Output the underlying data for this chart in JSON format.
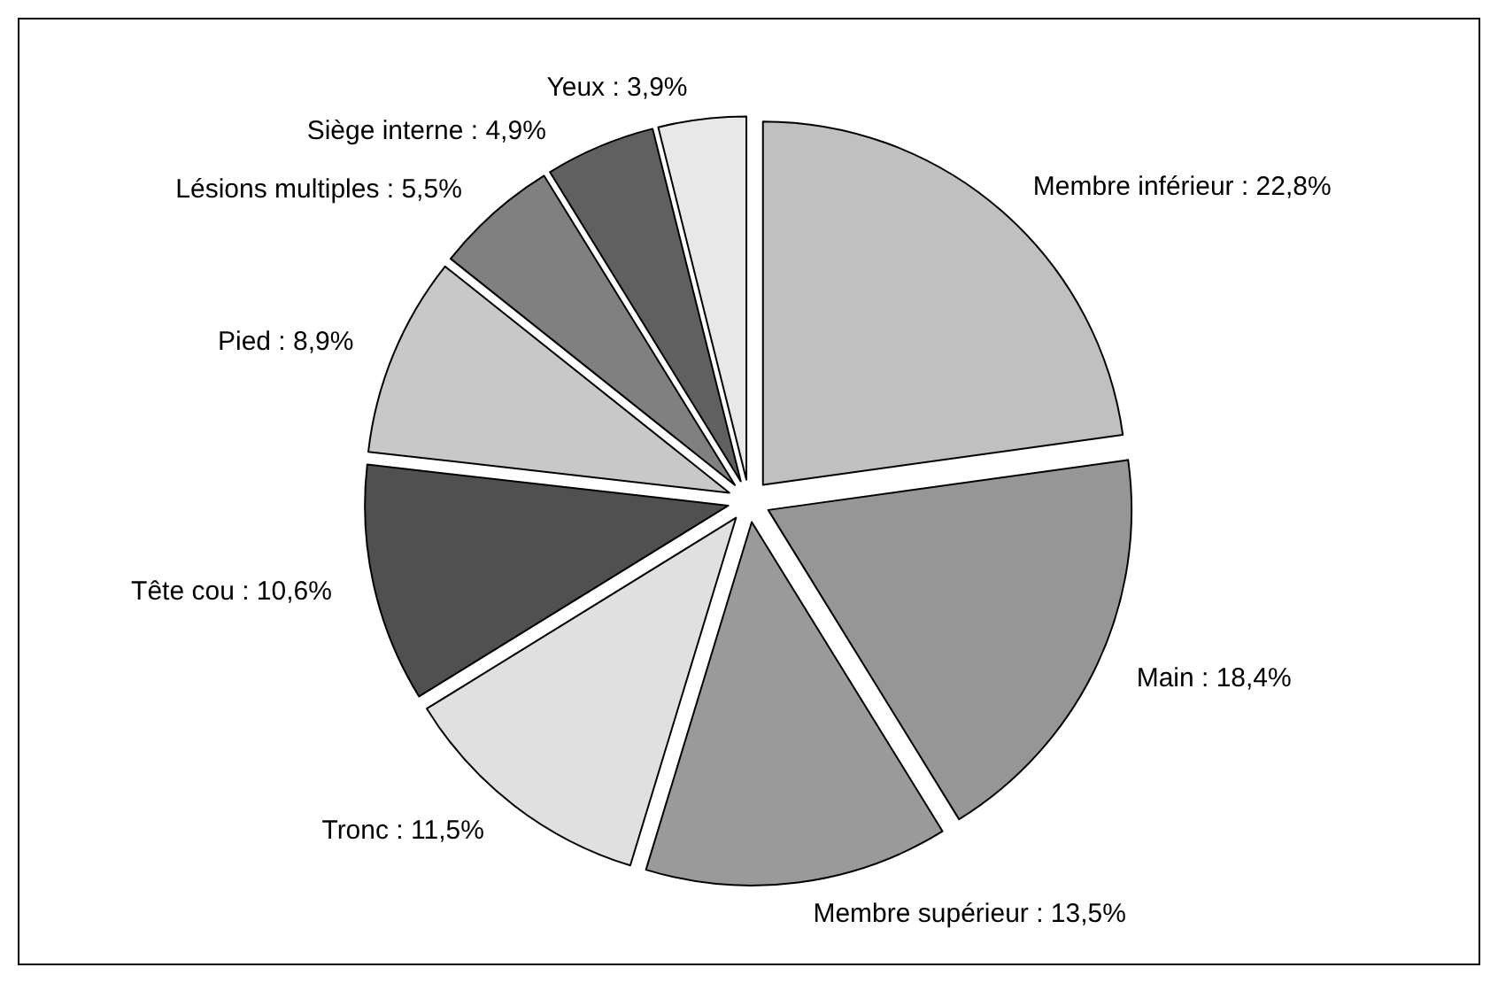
{
  "chart_data": {
    "type": "pie",
    "categories": [
      "Membre inférieur",
      "Main",
      "Membre supérieur",
      "Tronc",
      "Tête cou",
      "Pied",
      "Lésions multiples",
      "Siège interne",
      "Yeux"
    ],
    "values": [
      22.8,
      18.4,
      13.5,
      11.5,
      10.6,
      8.9,
      5.5,
      4.9,
      3.9
    ],
    "value_labels": [
      "22,8%",
      "18,4%",
      "13,5%",
      "11,5%",
      "10,6%",
      "8,9%",
      "5,5%",
      "4,9%",
      "3,9%"
    ],
    "colors": [
      "#c0c0c0",
      "#969696",
      "#9a9a9a",
      "#e0e0e0",
      "#505050",
      "#c8c8c8",
      "#808080",
      "#606060",
      "#e8e8e8"
    ],
    "legend": false
  }
}
